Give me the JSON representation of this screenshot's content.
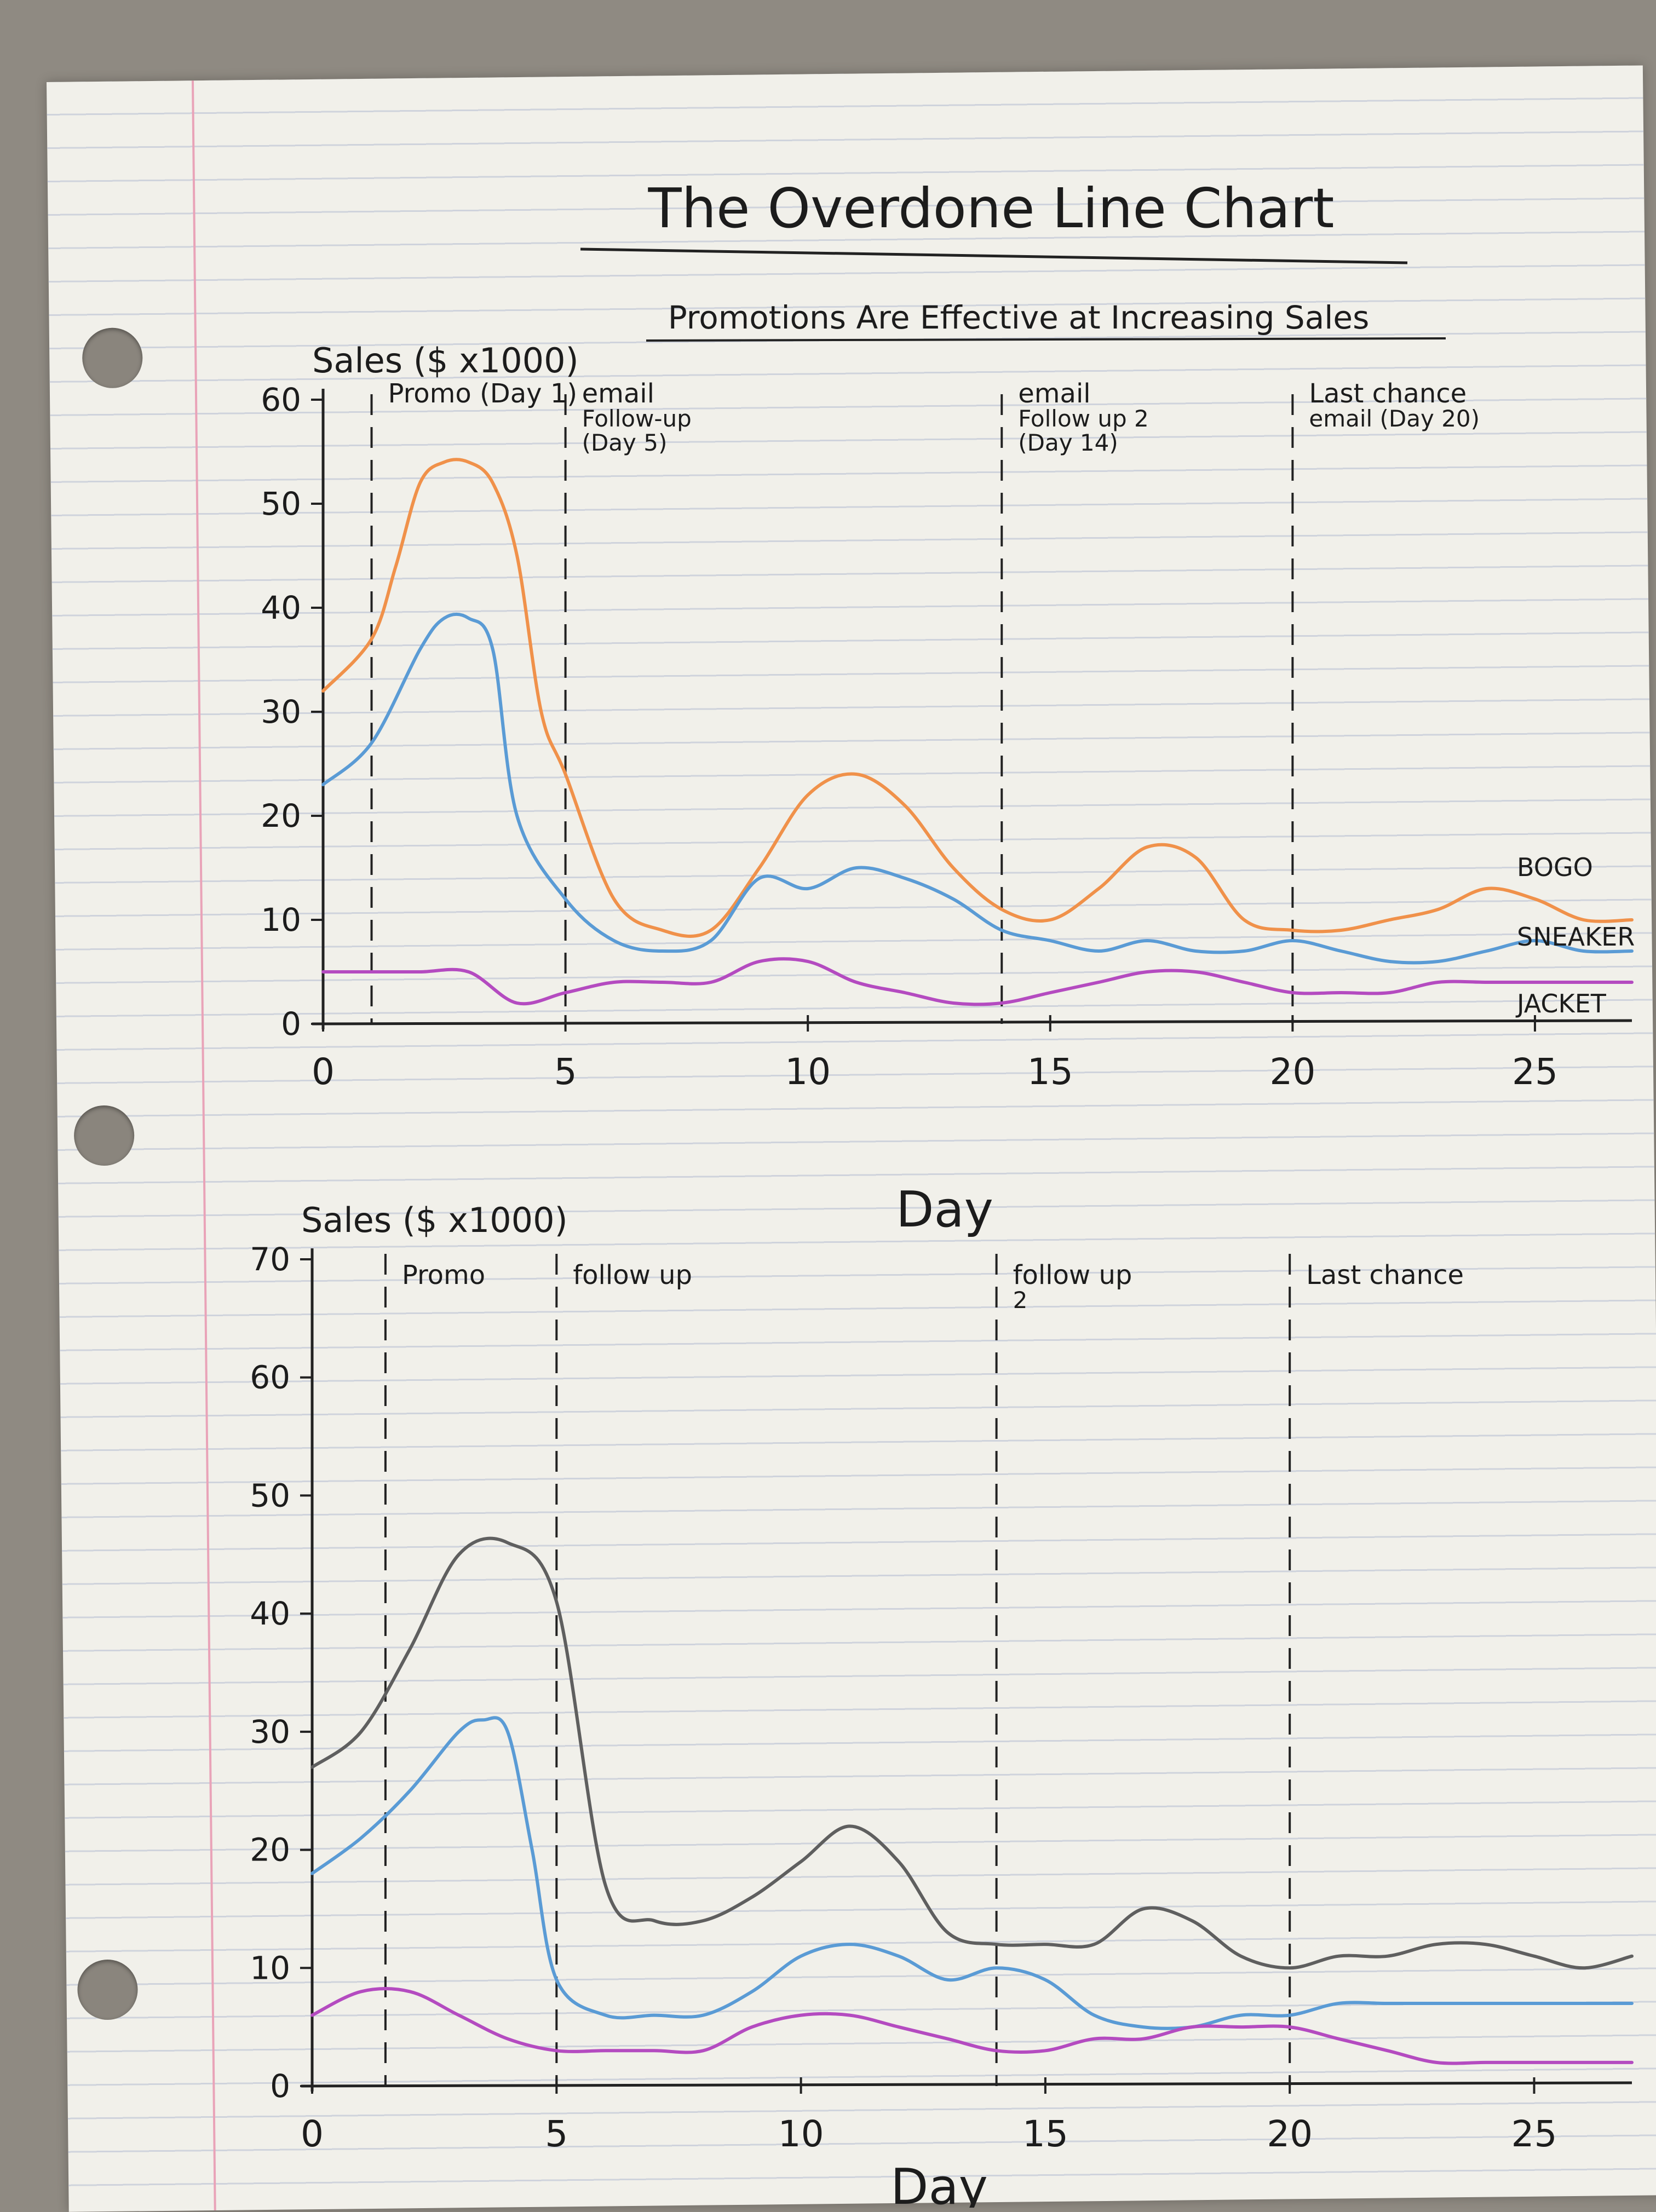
{
  "page": {
    "title": "The Overdone Line Chart"
  },
  "chart_data": [
    {
      "type": "line",
      "title": "Promotions Are Effective at Increasing Sales",
      "xlabel": "Day",
      "ylabel": "Sales ($ x1000)",
      "xlim": [
        0,
        27
      ],
      "ylim": [
        0,
        60
      ],
      "xticks": [
        0,
        5,
        10,
        15,
        20,
        25
      ],
      "yticks": [
        0,
        10,
        20,
        30,
        40,
        50,
        60
      ],
      "grid": false,
      "annotations": [
        {
          "x": 1,
          "label": "Promo (Day 1)",
          "lines": [
            "Promo (Day 1)"
          ]
        },
        {
          "x": 5,
          "label": "email Follow-up (Day 5)",
          "lines": [
            "email",
            "Follow-up",
            "(Day 5)"
          ]
        },
        {
          "x": 14,
          "label": "email Follow up 2 (Day 14)",
          "lines": [
            "email",
            "Follow up 2",
            "(Day 14)"
          ]
        },
        {
          "x": 20,
          "label": "Last chance email (Day 20)",
          "lines": [
            "Last chance",
            "email (Day 20)"
          ]
        }
      ],
      "series": [
        {
          "name": "BOGO",
          "color": "#f0914a",
          "x": [
            0,
            1,
            1.5,
            2,
            2.5,
            3,
            3.5,
            4,
            4.5,
            5,
            6,
            7,
            8,
            9,
            10,
            11,
            12,
            13,
            14,
            15,
            16,
            17,
            18,
            19,
            20,
            21,
            22,
            23,
            24,
            25,
            26,
            27
          ],
          "y": [
            32,
            37,
            44,
            52,
            54,
            54,
            52,
            45,
            30,
            24,
            12,
            9,
            9,
            15,
            22,
            24,
            21,
            15,
            11,
            10,
            13,
            17,
            16,
            10,
            9,
            9,
            10,
            11,
            13,
            12,
            10,
            10
          ]
        },
        {
          "name": "SNEAKER",
          "color": "#5a9bd5",
          "x": [
            0,
            1,
            2,
            2.5,
            3,
            3.5,
            4,
            5,
            6,
            7,
            8,
            9,
            10,
            11,
            12,
            13,
            14,
            15,
            16,
            17,
            18,
            19,
            20,
            21,
            22,
            23,
            24,
            25,
            26,
            27
          ],
          "y": [
            23,
            27,
            36,
            39,
            39,
            36,
            20,
            12,
            8,
            7,
            8,
            14,
            13,
            15,
            14,
            12,
            9,
            8,
            7,
            8,
            7,
            7,
            8,
            7,
            6,
            6,
            7,
            8,
            7,
            7
          ]
        },
        {
          "name": "JACKET",
          "color": "#b44bc0",
          "x": [
            0,
            1,
            2,
            3,
            4,
            5,
            6,
            7,
            8,
            9,
            10,
            11,
            12,
            13,
            14,
            15,
            16,
            17,
            18,
            19,
            20,
            21,
            22,
            23,
            24,
            25,
            26,
            27
          ],
          "y": [
            5,
            5,
            5,
            5,
            2,
            3,
            4,
            4,
            4,
            6,
            6,
            4,
            3,
            2,
            2,
            3,
            4,
            5,
            5,
            4,
            3,
            3,
            3,
            4,
            4,
            4,
            4,
            4
          ]
        }
      ]
    },
    {
      "type": "line",
      "title": "",
      "xlabel": "Day",
      "ylabel": "Sales ($ x1000)",
      "xlim": [
        0,
        27
      ],
      "ylim": [
        0,
        70
      ],
      "xticks": [
        0,
        5,
        10,
        15,
        20,
        25
      ],
      "yticks": [
        0,
        10,
        20,
        30,
        40,
        50,
        60,
        70
      ],
      "grid": false,
      "annotations": [
        {
          "x": 1.5,
          "label": "Promo",
          "lines": [
            "Promo"
          ]
        },
        {
          "x": 5,
          "label": "follow up",
          "lines": [
            "follow up"
          ]
        },
        {
          "x": 14,
          "label": "follow up 2",
          "lines": [
            "follow up",
            "2"
          ]
        },
        {
          "x": 20,
          "label": "Last chance",
          "lines": [
            "Last chance"
          ]
        }
      ],
      "series": [
        {
          "name": "",
          "color": "#5f5f5f",
          "x": [
            0,
            1,
            2,
            3,
            4,
            5,
            6,
            7,
            8,
            9,
            10,
            11,
            12,
            13,
            14,
            15,
            16,
            17,
            18,
            19,
            20,
            21,
            22,
            23,
            24,
            25,
            26,
            27
          ],
          "y": [
            27,
            30,
            37,
            45,
            46,
            41,
            17,
            14,
            14,
            16,
            19,
            22,
            19,
            13,
            12,
            12,
            12,
            15,
            14,
            11,
            10,
            11,
            11,
            12,
            12,
            11,
            10,
            11
          ]
        },
        {
          "name": "",
          "color": "#5a9bd5",
          "x": [
            0,
            1,
            2,
            3,
            3.5,
            4,
            4.5,
            5,
            6,
            7,
            8,
            9,
            10,
            11,
            12,
            13,
            14,
            15,
            16,
            17,
            18,
            19,
            20,
            21,
            22,
            23,
            24,
            25,
            26,
            27
          ],
          "y": [
            18,
            21,
            25,
            30,
            31,
            30,
            20,
            9,
            6,
            6,
            6,
            8,
            11,
            12,
            11,
            9,
            10,
            9,
            6,
            5,
            5,
            6,
            6,
            7,
            7,
            7,
            7,
            7,
            7,
            7
          ]
        },
        {
          "name": "",
          "color": "#b44bc0",
          "x": [
            0,
            1,
            2,
            3,
            4,
            5,
            6,
            7,
            8,
            9,
            10,
            11,
            12,
            13,
            14,
            15,
            16,
            17,
            18,
            19,
            20,
            21,
            22,
            23,
            24,
            25,
            26,
            27
          ],
          "y": [
            6,
            8,
            8,
            6,
            4,
            3,
            3,
            3,
            3,
            5,
            6,
            6,
            5,
            4,
            3,
            3,
            4,
            4,
            5,
            5,
            5,
            4,
            3,
            2,
            2,
            2,
            2,
            2
          ]
        }
      ]
    }
  ]
}
